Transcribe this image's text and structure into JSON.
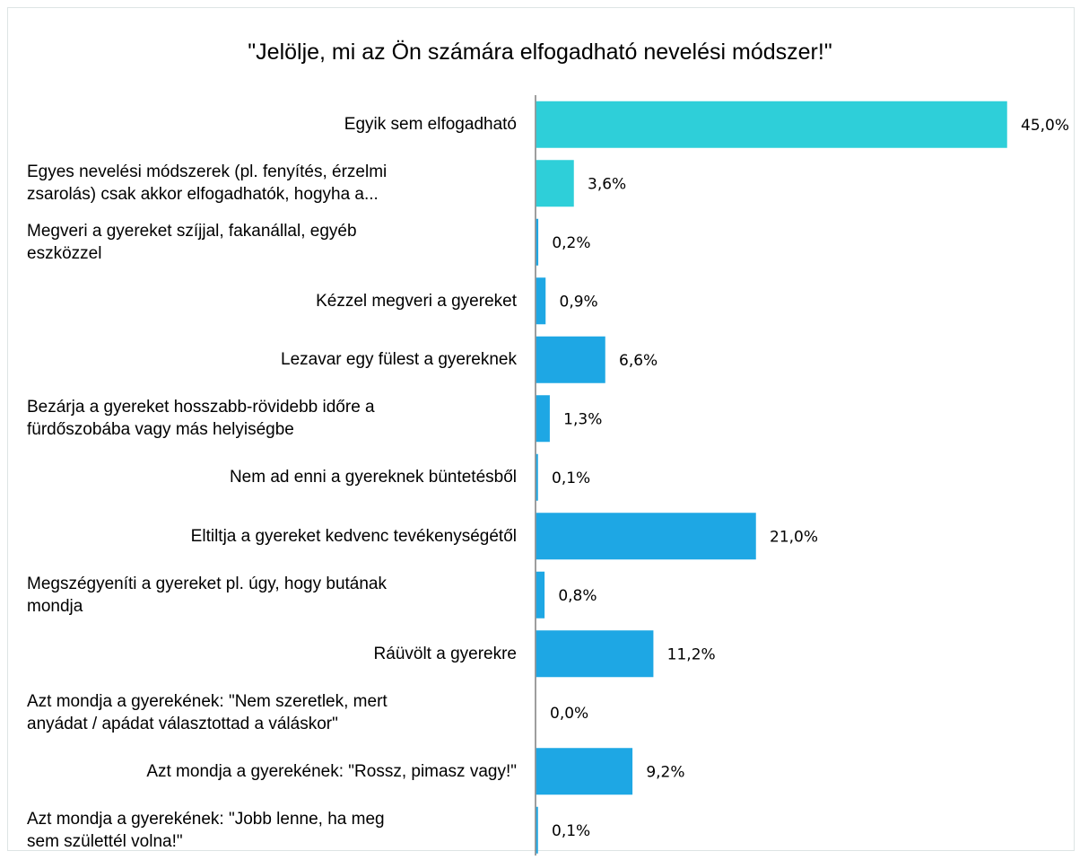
{
  "chart_data": {
    "type": "bar",
    "orientation": "horizontal",
    "title": "\"Jelölje, mi az Ön számára elfogadható nevelési módszer!\"",
    "categories": [
      "Egyik sem elfogadható",
      "Egyes nevelési módszerek (pl. fenyítés, érzelmi zsarolás) csak akkor elfogadhatók, hogyha a...",
      "Megveri a gyereket szíjjal, fakanállal, egyéb eszközzel",
      "Kézzel megveri a gyereket",
      "Lezavar egy fülest a gyereknek",
      "Bezárja a gyereket hosszabb-rövidebb időre a fürdőszobába vagy más helyiségbe",
      "Nem ad enni a gyereknek büntetésből",
      "Eltiltja a gyereket kedvenc tevékenységétől",
      "Megszégyeníti a gyereket pl. úgy, hogy butának mondja",
      "Ráüvölt a gyerekre",
      "Azt mondja a gyerekének: \"Nem szeretlek, mert anyádat / apádat választottad a váláskor\"",
      "Azt mondja a gyerekének: \"Rossz, pimasz vagy!\"",
      "Azt mondja a gyerekének: \"Jobb lenne, ha meg sem születtél volna!\""
    ],
    "category_lines": [
      [
        "Egyik sem elfogadható"
      ],
      [
        "Egyes nevelési módszerek (pl. fenyítés, érzelmi",
        "zsarolás) csak akkor elfogadhatók, hogyha a..."
      ],
      [
        "Megveri a gyereket szíjjal, fakanállal, egyéb",
        "eszközzel"
      ],
      [
        "Kézzel megveri a gyereket"
      ],
      [
        "Lezavar egy fülest a gyereknek"
      ],
      [
        "Bezárja a gyereket hosszabb-rövidebb időre a",
        "fürdőszobába vagy más helyiségbe"
      ],
      [
        "Nem ad enni a gyereknek büntetésből"
      ],
      [
        "Eltiltja a gyereket kedvenc tevékenységétől"
      ],
      [
        "Megszégyeníti a gyereket pl. úgy, hogy butának",
        "mondja"
      ],
      [
        "Ráüvölt a gyerekre"
      ],
      [
        "Azt mondja a gyerekének: \"Nem szeretlek, mert",
        "anyádat / apádat választottad a váláskor\""
      ],
      [
        "Azt mondja a gyerekének: \"Rossz, pimasz vagy!\""
      ],
      [
        "Azt mondja a gyerekének: \"Jobb lenne, ha meg",
        "sem születtél volna!\""
      ]
    ],
    "values": [
      45.0,
      3.6,
      0.2,
      0.9,
      6.6,
      1.3,
      0.1,
      21.0,
      0.8,
      11.2,
      0.0,
      9.2,
      0.1
    ],
    "value_labels": [
      "45,0%",
      "3,6%",
      "0,2%",
      "0,9%",
      "6,6%",
      "1,3%",
      "0,1%",
      "21,0%",
      "0,8%",
      "11,2%",
      "0,0%",
      "9,2%",
      "0,1%"
    ],
    "bar_colors": [
      "#2ecfd9",
      "#2ecfd9",
      "#1ea7e4",
      "#1ea7e4",
      "#1ea7e4",
      "#1ea7e4",
      "#1ea7e4",
      "#1ea7e4",
      "#1ea7e4",
      "#1ea7e4",
      "#1ea7e4",
      "#1ea7e4",
      "#1ea7e4"
    ],
    "axis_color": "#7f7f7f",
    "xlim": [
      0,
      45.0
    ],
    "xlabel": "",
    "ylabel": "",
    "grid": false,
    "legend": "none"
  }
}
